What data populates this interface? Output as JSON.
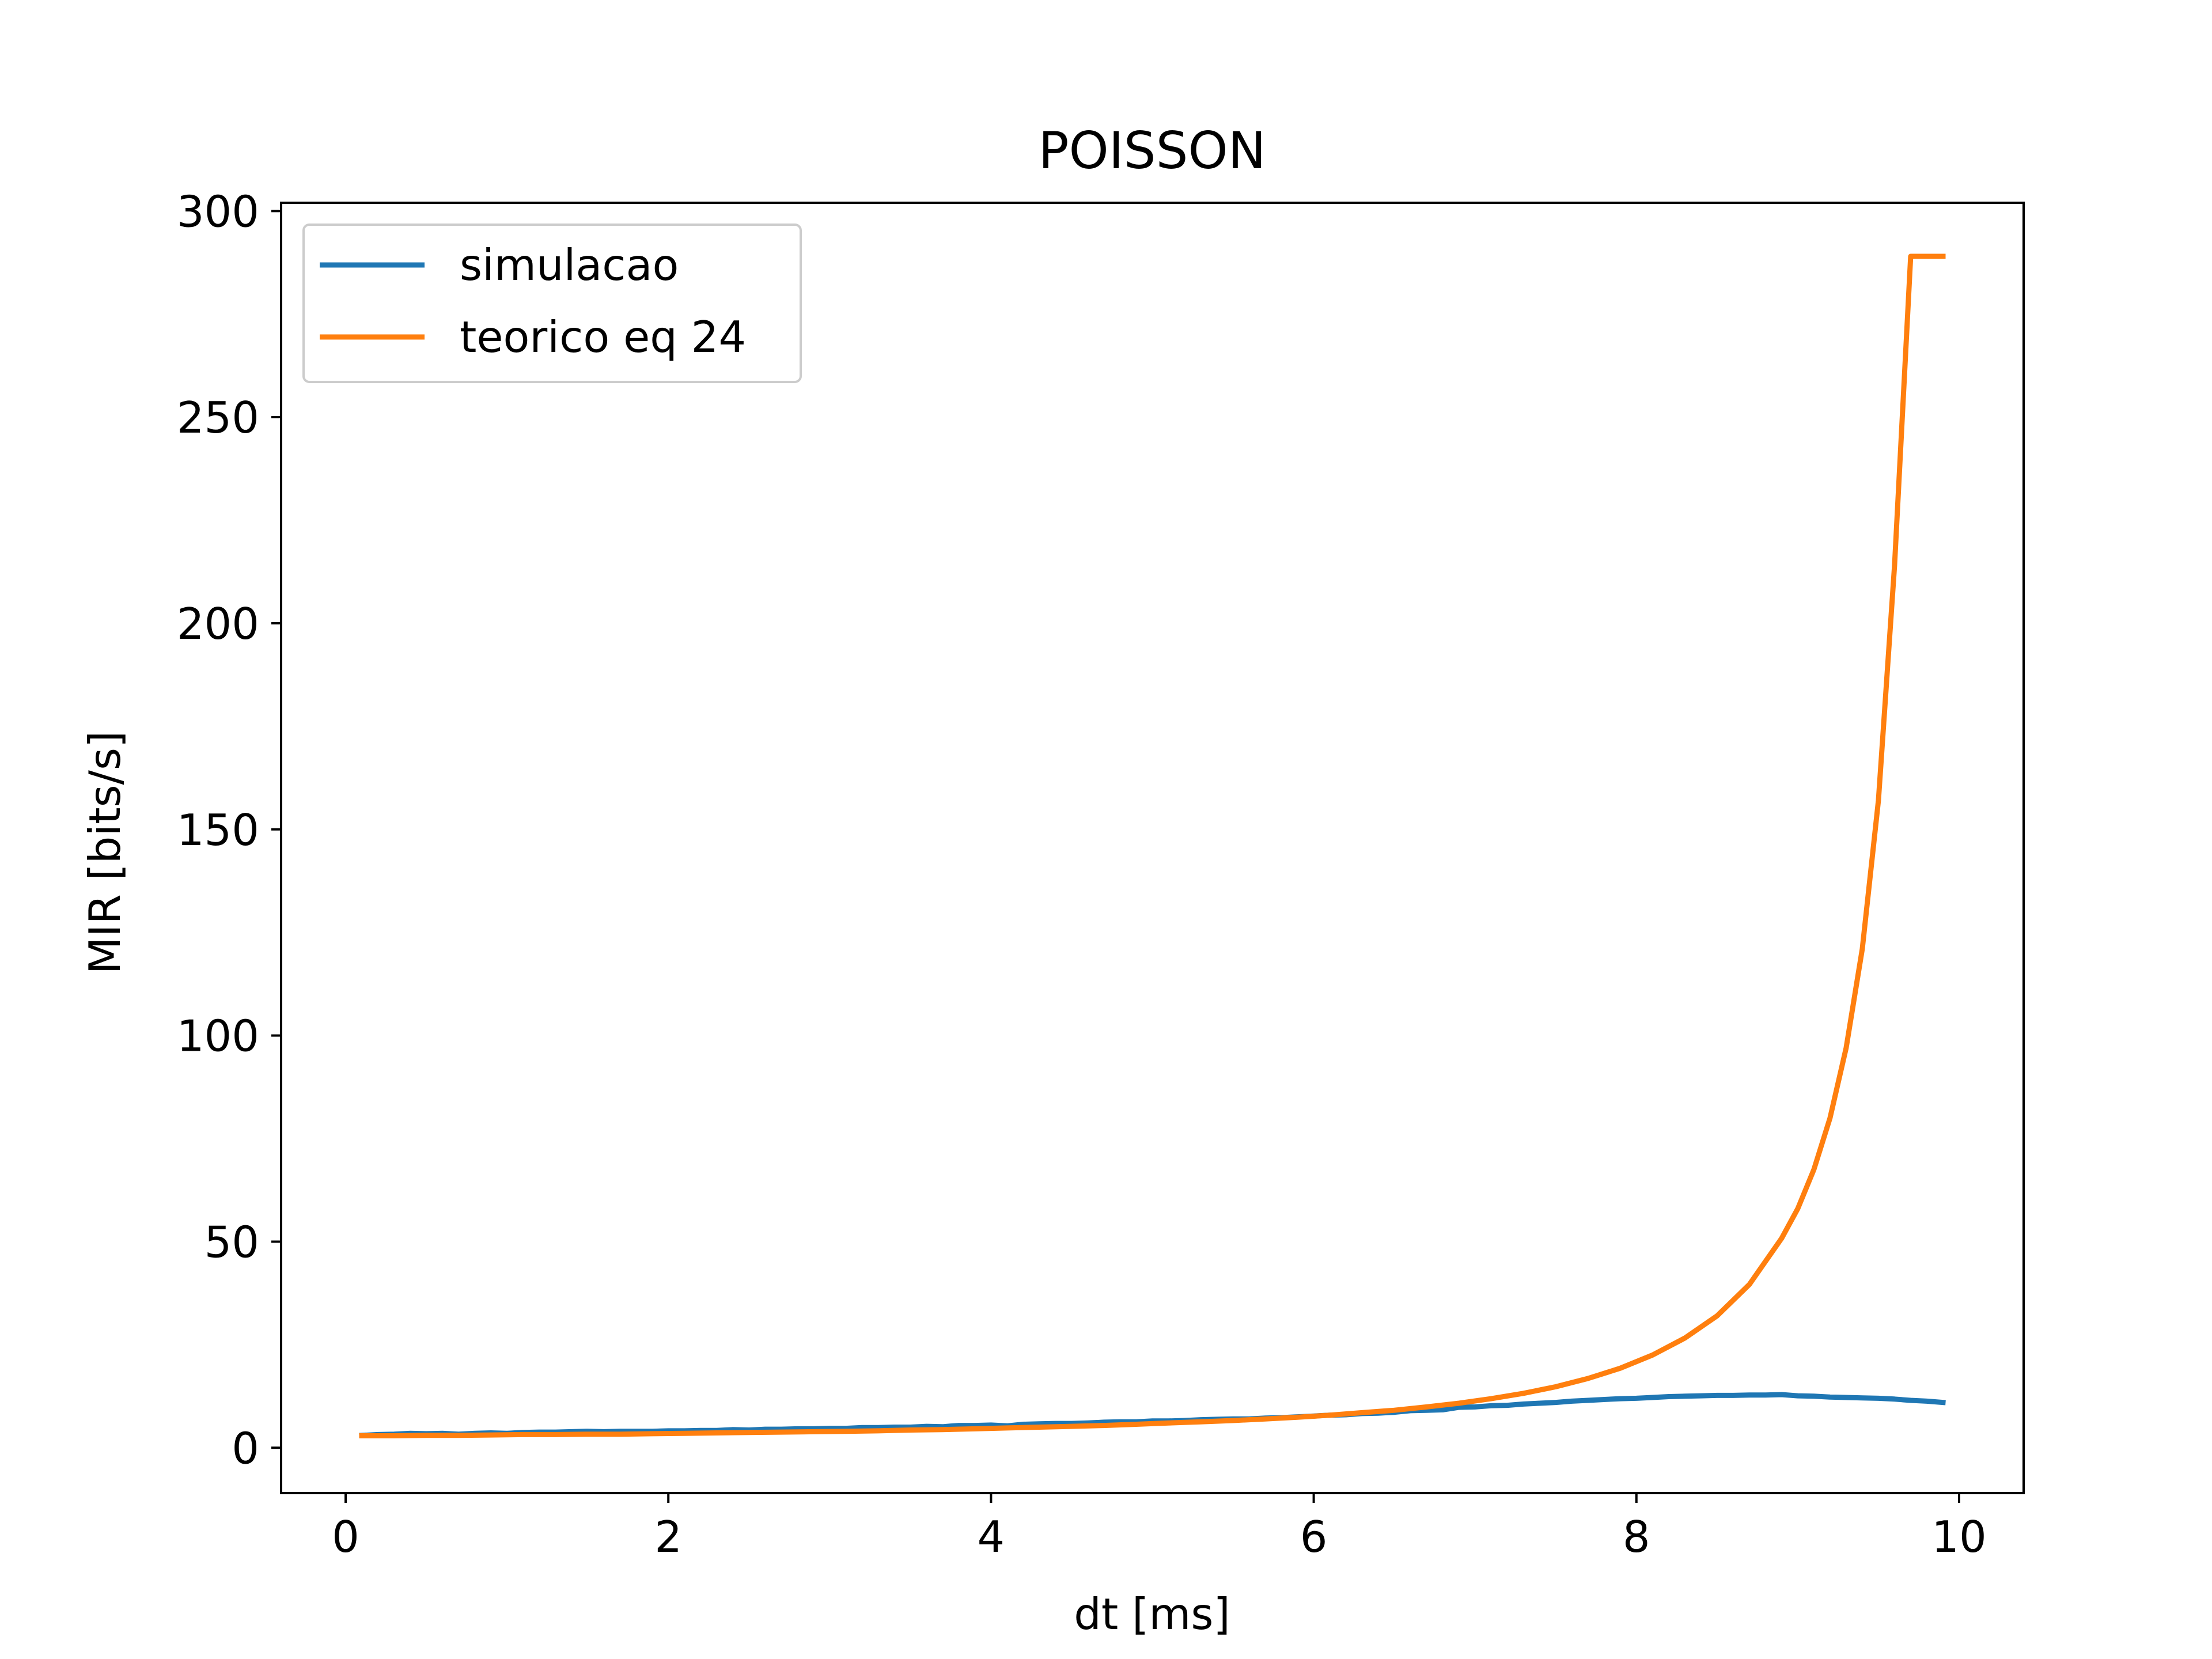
{
  "chart_data": {
    "type": "line",
    "title": "POISSON",
    "xlabel": "dt [ms]",
    "ylabel": "MIR [bits/s]",
    "xlim": [
      -0.4,
      10.4
    ],
    "ylim": [
      -11,
      302
    ],
    "xticks": [
      0,
      2,
      4,
      6,
      8,
      10
    ],
    "yticks": [
      0,
      50,
      100,
      150,
      200,
      250,
      300
    ],
    "grid": false,
    "legend_position": "top-left",
    "series": [
      {
        "name": "simulacao",
        "color": "#1f77b4",
        "x": [
          0.1,
          0.2,
          0.3,
          0.4,
          0.5,
          0.6,
          0.7,
          0.8,
          0.9,
          1.0,
          1.1,
          1.2,
          1.3,
          1.4,
          1.5,
          1.6,
          1.7,
          1.8,
          1.9,
          2.0,
          2.1,
          2.2,
          2.3,
          2.4,
          2.5,
          2.6,
          2.7,
          2.8,
          2.9,
          3.0,
          3.1,
          3.2,
          3.3,
          3.4,
          3.5,
          3.6,
          3.7,
          3.8,
          3.9,
          4.0,
          4.1,
          4.2,
          4.3,
          4.4,
          4.5,
          4.6,
          4.7,
          4.8,
          4.9,
          5.0,
          5.1,
          5.2,
          5.3,
          5.4,
          5.5,
          5.6,
          5.7,
          5.8,
          5.9,
          6.0,
          6.1,
          6.2,
          6.3,
          6.4,
          6.5,
          6.6,
          6.7,
          6.8,
          6.9,
          7.0,
          7.1,
          7.2,
          7.3,
          7.4,
          7.5,
          7.6,
          7.7,
          7.8,
          7.9,
          8.0,
          8.1,
          8.2,
          8.3,
          8.4,
          8.5,
          8.6,
          8.7,
          8.8,
          8.9,
          9.0,
          9.1,
          9.2,
          9.3,
          9.4,
          9.5,
          9.6,
          9.7,
          9.8,
          9.9
        ],
        "y": [
          3.0,
          3.2,
          3.3,
          3.5,
          3.4,
          3.5,
          3.3,
          3.5,
          3.6,
          3.5,
          3.7,
          3.8,
          3.8,
          3.9,
          4.0,
          3.9,
          4.0,
          4.0,
          4.0,
          4.1,
          4.1,
          4.2,
          4.2,
          4.4,
          4.3,
          4.5,
          4.5,
          4.6,
          4.6,
          4.7,
          4.7,
          4.9,
          4.9,
          5.0,
          5.0,
          5.2,
          5.1,
          5.4,
          5.4,
          5.5,
          5.3,
          5.7,
          5.8,
          5.9,
          5.9,
          6.0,
          6.2,
          6.3,
          6.3,
          6.5,
          6.5,
          6.6,
          6.8,
          6.9,
          7.0,
          7.0,
          7.2,
          7.3,
          7.5,
          7.7,
          7.9,
          8.0,
          8.3,
          8.4,
          8.6,
          9.0,
          9.1,
          9.2,
          9.8,
          9.9,
          10.2,
          10.3,
          10.6,
          10.8,
          11.0,
          11.3,
          11.5,
          11.7,
          11.9,
          12.0,
          12.2,
          12.4,
          12.5,
          12.6,
          12.7,
          12.7,
          12.8,
          12.8,
          12.9,
          12.6,
          12.5,
          12.3,
          12.2,
          12.1,
          12.0,
          11.8,
          11.5,
          11.3,
          11.0
        ]
      },
      {
        "name": "teorico eq 24",
        "color": "#ff7f0e",
        "x": [
          0.1,
          0.3,
          0.5,
          0.7,
          0.9,
          1.1,
          1.3,
          1.5,
          1.7,
          1.9,
          2.1,
          2.3,
          2.5,
          2.7,
          2.9,
          3.1,
          3.3,
          3.5,
          3.7,
          3.9,
          4.1,
          4.3,
          4.5,
          4.7,
          4.9,
          5.1,
          5.3,
          5.5,
          5.7,
          5.9,
          6.1,
          6.3,
          6.5,
          6.7,
          6.9,
          7.1,
          7.3,
          7.5,
          7.7,
          7.9,
          8.1,
          8.3,
          8.5,
          8.7,
          8.9,
          9.0,
          9.1,
          9.2,
          9.3,
          9.4,
          9.5,
          9.6,
          9.7,
          9.8,
          9.85,
          9.9
        ],
        "y": [
          2.9,
          2.9,
          3.0,
          3.0,
          3.1,
          3.2,
          3.2,
          3.3,
          3.3,
          3.4,
          3.5,
          3.6,
          3.7,
          3.8,
          3.9,
          4.0,
          4.1,
          4.3,
          4.4,
          4.6,
          4.8,
          5.0,
          5.2,
          5.4,
          5.7,
          6.0,
          6.3,
          6.6,
          7.0,
          7.4,
          7.9,
          8.5,
          9.1,
          9.9,
          10.8,
          11.9,
          13.2,
          14.8,
          16.8,
          19.3,
          22.5,
          26.6,
          32.0,
          39.6,
          50.8,
          58.0,
          67.5,
          80.0,
          97.0,
          121.0,
          157.0,
          214.0,
          289.0,
          289.0,
          289.0,
          289.0
        ]
      }
    ]
  }
}
